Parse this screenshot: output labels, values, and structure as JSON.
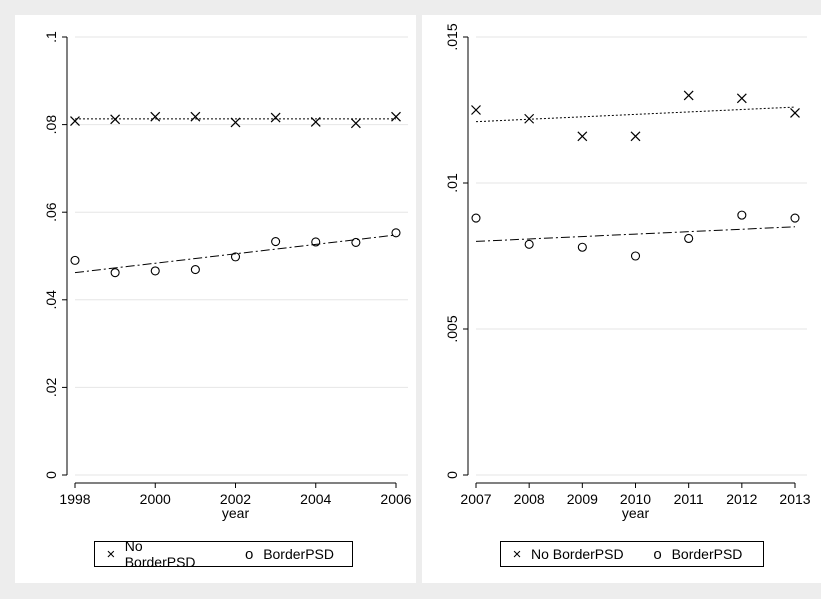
{
  "chart_data": [
    {
      "type": "scatter",
      "title": "",
      "xlabel": "year",
      "ylabel": "",
      "xlim": [
        1998,
        2006
      ],
      "ylim": [
        0,
        0.1
      ],
      "xticks": [
        1998,
        2000,
        2002,
        2004,
        2006
      ],
      "yticks": [
        0,
        0.02,
        0.04,
        0.06,
        0.08,
        0.1
      ],
      "ytick_labels": [
        "0",
        ".02",
        ".04",
        ".06",
        ".08",
        ".1"
      ],
      "grid": "horizontal",
      "legend": "bottom",
      "x": [
        1998,
        1999,
        2000,
        2001,
        2002,
        2003,
        2004,
        2005,
        2006
      ],
      "series": [
        {
          "name": "No BorderPSD",
          "marker": "x",
          "values": [
            0.0808,
            0.0812,
            0.0818,
            0.0818,
            0.0805,
            0.0816,
            0.0806,
            0.0803,
            0.0818
          ],
          "fit_line": [
            0.0813,
            0.0813
          ]
        },
        {
          "name": "BorderPSD",
          "marker": "o",
          "values": [
            0.049,
            0.0462,
            0.0466,
            0.0469,
            0.0498,
            0.0533,
            0.0532,
            0.0531,
            0.0553
          ],
          "fit_line": [
            0.0462,
            0.0548
          ]
        }
      ]
    },
    {
      "type": "scatter",
      "title": "",
      "xlabel": "year",
      "ylabel": "",
      "xlim": [
        2007,
        2013
      ],
      "ylim": [
        0,
        0.015
      ],
      "xticks": [
        2007,
        2008,
        2009,
        2010,
        2011,
        2012,
        2013
      ],
      "yticks": [
        0,
        0.005,
        0.01,
        0.015
      ],
      "ytick_labels": [
        "0",
        ".005",
        ".01",
        ".015"
      ],
      "grid": "horizontal",
      "legend": "bottom",
      "x": [
        2007,
        2008,
        2009,
        2010,
        2011,
        2012,
        2013
      ],
      "series": [
        {
          "name": "No BorderPSD",
          "marker": "x",
          "values": [
            0.0125,
            0.0122,
            0.0116,
            0.0116,
            0.013,
            0.0129,
            0.0124
          ],
          "fit_line": [
            0.0121,
            0.0126
          ]
        },
        {
          "name": "BorderPSD",
          "marker": "o",
          "values": [
            0.0088,
            0.0079,
            0.0078,
            0.0075,
            0.0081,
            0.0089,
            0.0088
          ],
          "fit_line": [
            0.008,
            0.0085
          ]
        }
      ]
    }
  ],
  "legend": {
    "no_border_symbol": "×",
    "border_symbol": "o",
    "no_border_label": "No BorderPSD",
    "border_label": "BorderPSD"
  }
}
